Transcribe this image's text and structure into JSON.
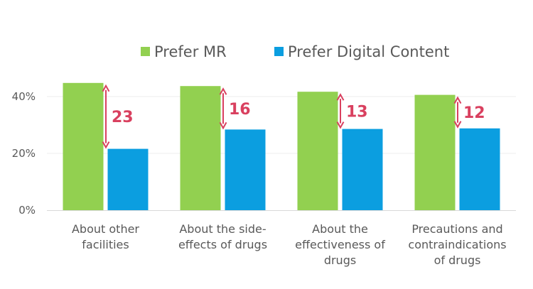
{
  "chart_data": {
    "type": "bar",
    "title": "",
    "xlabel": "",
    "ylabel": "",
    "ylim": [
      0,
      50
    ],
    "yticks": [
      0,
      20,
      40
    ],
    "ytick_labels": [
      "0%",
      "20%",
      "40%"
    ],
    "grid": true,
    "legend_position": "top",
    "categories": [
      [
        "About other",
        "facilities"
      ],
      [
        "About the side-",
        "effects of drugs"
      ],
      [
        "About the",
        "effectiveness of",
        "drugs"
      ],
      [
        "Precautions and",
        "contraindications",
        "of drugs"
      ]
    ],
    "series": [
      {
        "name": "Prefer MR",
        "color": "#92d050",
        "values": [
          44.8,
          43.7,
          41.7,
          40.6
        ]
      },
      {
        "name": "Prefer Digital Content",
        "color": "#0b9ee0",
        "values": [
          21.6,
          28.4,
          28.6,
          28.8
        ]
      }
    ],
    "differences": [
      {
        "label": "23"
      },
      {
        "label": "16"
      },
      {
        "label": "13"
      },
      {
        "label": "12"
      }
    ],
    "difference_color": "#d9405f"
  }
}
